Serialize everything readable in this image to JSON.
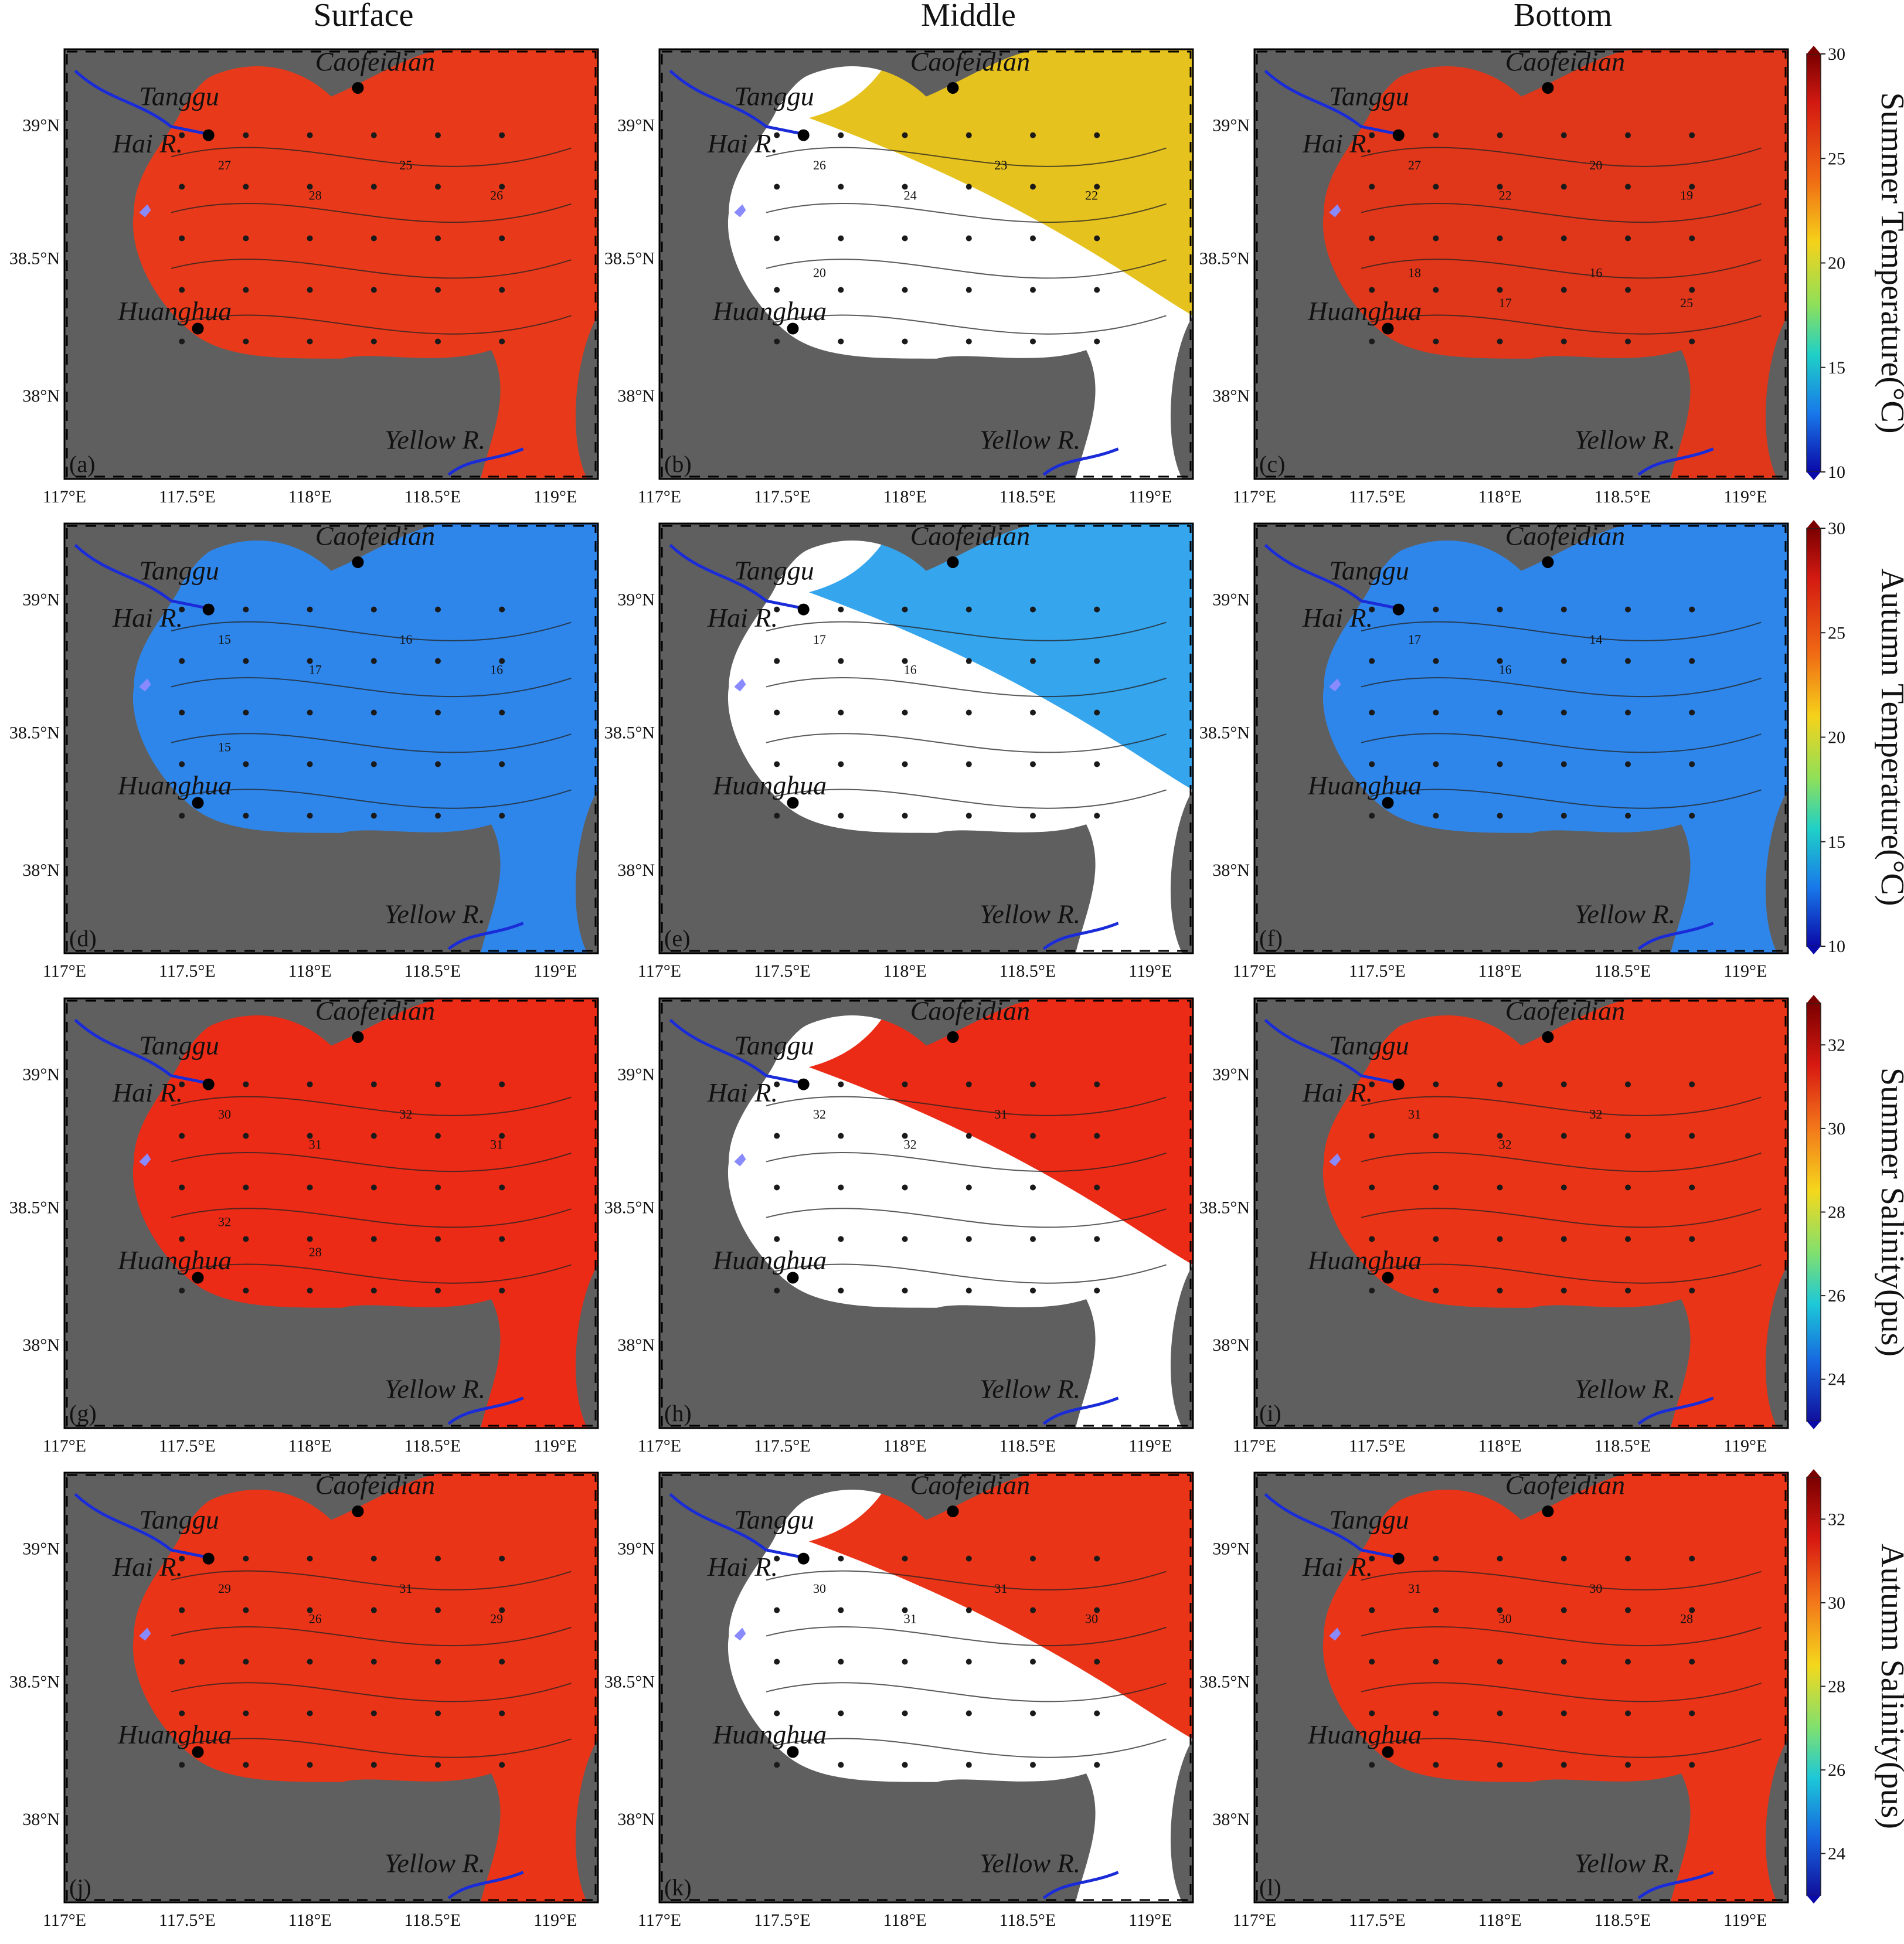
{
  "columns": [
    "Surface",
    "Middle",
    "Bottom"
  ],
  "places": {
    "caofeidian": "Caofeidian",
    "tanggu": "Tanggu",
    "hai": "Hai R.",
    "huanghua": "Huanghua",
    "yellow": "Yellow R."
  },
  "lat_ticks": [
    "39°N",
    "38.5°N",
    "38°N"
  ],
  "lon_ticks": [
    "117°E",
    "117.5°E",
    "118°E",
    "118.5°E",
    "119°E"
  ],
  "rows": [
    {
      "row_label": "Summer Temperature(°C)",
      "colorbar": {
        "min": 10,
        "max": 30,
        "ticks": [
          "30",
          "25",
          "20",
          "15",
          "10"
        ]
      },
      "panels": [
        {
          "label": "(a)",
          "fill": "#e83a1a",
          "contour_labels": [
            "27",
            "28",
            "25",
            "26"
          ]
        },
        {
          "label": "(b)",
          "fill": "#e6c21e",
          "contour_labels": [
            "26",
            "24",
            "23",
            "22",
            "20"
          ]
        },
        {
          "label": "(c)",
          "fill": "#e0371b",
          "contour_labels": [
            "27",
            "22",
            "20",
            "19",
            "18",
            "17",
            "16",
            "25"
          ]
        }
      ]
    },
    {
      "row_label": "Autumn Temperature(°C)",
      "colorbar": {
        "min": 10,
        "max": 30,
        "ticks": [
          "30",
          "25",
          "20",
          "15",
          "10"
        ]
      },
      "panels": [
        {
          "label": "(d)",
          "fill": "#2f86ea",
          "contour_labels": [
            "15",
            "17",
            "16",
            "16",
            "15"
          ]
        },
        {
          "label": "(e)",
          "fill": "#35a5ee",
          "contour_labels": [
            "17",
            "16"
          ]
        },
        {
          "label": "(f)",
          "fill": "#2f86ea",
          "contour_labels": [
            "17",
            "16",
            "14"
          ]
        }
      ]
    },
    {
      "row_label": "Summer Salinity(pus)",
      "colorbar": {
        "min": 23,
        "max": 33,
        "ticks": [
          "32",
          "30",
          "28",
          "26",
          "24"
        ]
      },
      "panels": [
        {
          "label": "(g)",
          "fill": "#ec2b17",
          "contour_labels": [
            "30",
            "31",
            "32",
            "31",
            "32",
            "28"
          ]
        },
        {
          "label": "(h)",
          "fill": "#ec2b17",
          "contour_labels": [
            "32",
            "32",
            "31"
          ]
        },
        {
          "label": "(i)",
          "fill": "#ea3418",
          "contour_labels": [
            "31",
            "32",
            "32"
          ]
        }
      ]
    },
    {
      "row_label": "Autumn Salinity(pus)",
      "colorbar": {
        "min": 23,
        "max": 33,
        "ticks": [
          "32",
          "30",
          "28",
          "26",
          "24"
        ]
      },
      "panels": [
        {
          "label": "(j)",
          "fill": "#ea3418",
          "contour_labels": [
            "29",
            "26",
            "31",
            "29"
          ]
        },
        {
          "label": "(k)",
          "fill": "#ea3418",
          "contour_labels": [
            "30",
            "31",
            "31",
            "30"
          ]
        },
        {
          "label": "(l)",
          "fill": "#ea3418",
          "contour_labels": [
            "31",
            "30",
            "30",
            "28"
          ]
        }
      ]
    }
  ]
}
